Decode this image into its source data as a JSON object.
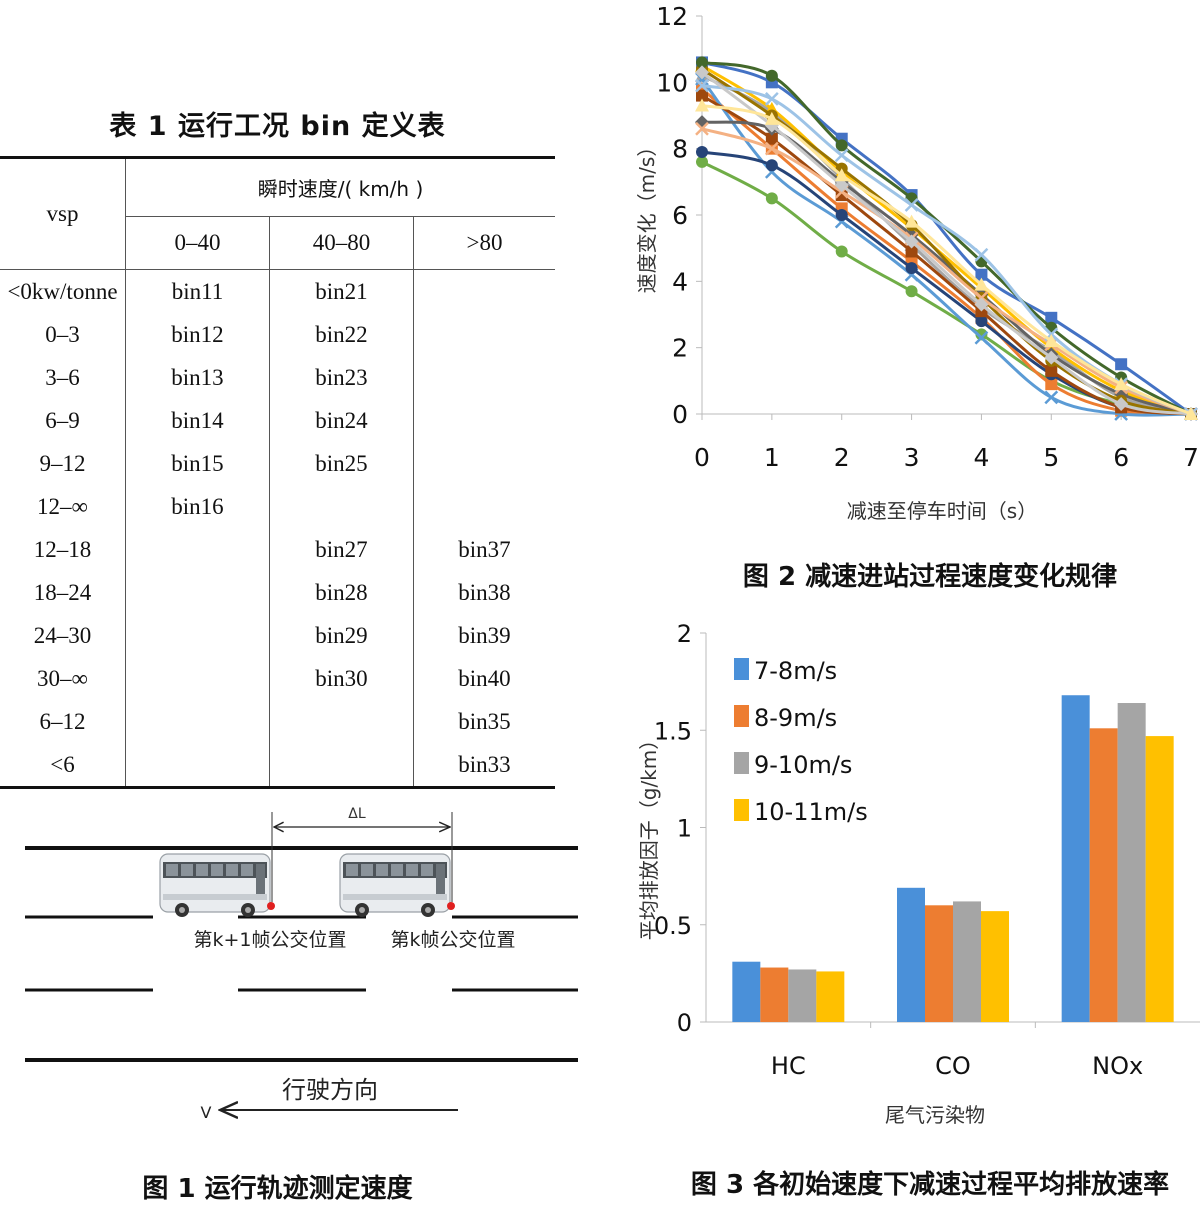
{
  "table1": {
    "title": "表 1  运行工况 bin 定义表",
    "row_header": "vsp",
    "speed_header": "瞬时速度/( km/h )",
    "speed_columns": [
      "0–40",
      "40–80",
      ">80"
    ],
    "rows": [
      {
        "vsp": "<0kw/tonne",
        "c1": "bin11",
        "c2": "bin21",
        "c3": ""
      },
      {
        "vsp": "0–3",
        "c1": "bin12",
        "c2": "bin22",
        "c3": ""
      },
      {
        "vsp": "3–6",
        "c1": "bin13",
        "c2": "bin23",
        "c3": ""
      },
      {
        "vsp": "6–9",
        "c1": "bin14",
        "c2": "bin24",
        "c3": ""
      },
      {
        "vsp": "9–12",
        "c1": "bin15",
        "c2": "bin25",
        "c3": ""
      },
      {
        "vsp": "12–∞",
        "c1": "bin16",
        "c2": "",
        "c3": ""
      },
      {
        "vsp": "12–18",
        "c1": "",
        "c2": "bin27",
        "c3": "bin37"
      },
      {
        "vsp": "18–24",
        "c1": "",
        "c2": "bin28",
        "c3": "bin38"
      },
      {
        "vsp": "24–30",
        "c1": "",
        "c2": "bin29",
        "c3": "bin39"
      },
      {
        "vsp": "30–∞",
        "c1": "",
        "c2": "bin30",
        "c3": "bin40"
      },
      {
        "vsp": "6–12",
        "c1": "",
        "c2": "",
        "c3": "bin35"
      },
      {
        "vsp": "<6",
        "c1": "",
        "c2": "",
        "c3": "bin33"
      }
    ]
  },
  "fig1": {
    "caption": "图 1  运行轨迹测定速度",
    "delta_label": "ΔL",
    "bus_labels": [
      "第k+1帧公交位置",
      "第k帧公交位置"
    ],
    "direction_label": "行驶方向",
    "v_label": "V"
  },
  "fig2": {
    "caption": "图 2  减速进站过程速度变化规律",
    "chart_data": {
      "type": "line",
      "xlabel": "减速至停车时间（s）",
      "ylabel": "速度变化（m/s）",
      "x": [
        0,
        1,
        2,
        3,
        4,
        5,
        6,
        7
      ],
      "xlim": [
        0,
        7
      ],
      "ylim": [
        0,
        12
      ],
      "yticks": [
        0,
        2,
        4,
        6,
        8,
        10,
        12
      ],
      "grid": false,
      "series": [
        {
          "color": "#4472c4",
          "marker": "square",
          "values": [
            10.6,
            10.0,
            8.3,
            6.6,
            4.2,
            2.9,
            1.5,
            0.0
          ]
        },
        {
          "color": "#70ad47",
          "marker": "circle",
          "values": [
            7.6,
            6.5,
            4.9,
            3.7,
            2.4,
            1.0,
            0.3,
            0.0
          ]
        },
        {
          "color": "#ed7d31",
          "marker": "square",
          "values": [
            9.8,
            8.0,
            6.2,
            4.6,
            2.9,
            0.9,
            0.1,
            0.0
          ]
        },
        {
          "color": "#a5a5a5",
          "marker": "triangle",
          "values": [
            10.2,
            9.1,
            7.1,
            5.1,
            3.2,
            1.9,
            0.5,
            0.0
          ]
        },
        {
          "color": "#ffc000",
          "marker": "triangle",
          "values": [
            10.5,
            9.2,
            7.3,
            5.6,
            3.8,
            2.0,
            0.7,
            0.0
          ]
        },
        {
          "color": "#5b9bd5",
          "marker": "x",
          "values": [
            10.1,
            7.3,
            5.8,
            4.2,
            2.3,
            0.5,
            0.0,
            0.0
          ]
        },
        {
          "color": "#264478",
          "marker": "circle",
          "values": [
            7.9,
            7.5,
            6.0,
            4.4,
            2.8,
            1.2,
            0.2,
            0.0
          ]
        },
        {
          "color": "#9e480e",
          "marker": "square",
          "values": [
            9.6,
            8.3,
            6.6,
            4.9,
            3.1,
            1.3,
            0.2,
            0.0
          ]
        },
        {
          "color": "#636363",
          "marker": "diamond",
          "values": [
            8.8,
            8.6,
            7.0,
            5.4,
            3.6,
            1.8,
            0.6,
            0.0
          ]
        },
        {
          "color": "#997300",
          "marker": "circle",
          "values": [
            10.4,
            9.0,
            7.4,
            5.7,
            3.5,
            1.6,
            0.4,
            0.0
          ]
        },
        {
          "color": "#43682b",
          "marker": "circle",
          "values": [
            10.6,
            10.2,
            8.1,
            6.5,
            4.6,
            2.6,
            1.1,
            0.0
          ]
        },
        {
          "color": "#f4b183",
          "marker": "x",
          "values": [
            8.6,
            8.0,
            6.7,
            5.3,
            3.5,
            2.1,
            0.8,
            0.0
          ]
        },
        {
          "color": "#9dc3e6",
          "marker": "x",
          "values": [
            9.9,
            9.5,
            7.8,
            6.3,
            4.8,
            2.4,
            0.9,
            0.0
          ]
        },
        {
          "color": "#c9c9c9",
          "marker": "diamond",
          "values": [
            10.3,
            8.7,
            6.9,
            5.2,
            3.3,
            1.7,
            0.3,
            0.0
          ]
        },
        {
          "color": "#ffe699",
          "marker": "triangle",
          "values": [
            9.3,
            8.9,
            7.2,
            5.8,
            3.9,
            2.2,
            0.9,
            0.0
          ]
        }
      ]
    }
  },
  "fig3": {
    "caption": "图 3  各初始速度下减速过程平均排放速率",
    "chart_data": {
      "type": "bar",
      "xlabel": "尾气污染物",
      "ylabel": "平均排放因子（g/km）",
      "categories": [
        "HC",
        "CO",
        "NOx"
      ],
      "ylim": [
        0,
        2
      ],
      "yticks": [
        "0",
        "0.5",
        "1",
        "1.5",
        "2"
      ],
      "legend_position": "top-left",
      "series": [
        {
          "name": "7-8m/s",
          "color": "#4a90d9",
          "values": [
            0.31,
            0.69,
            1.68
          ]
        },
        {
          "name": "8-9m/s",
          "color": "#ed7d31",
          "values": [
            0.28,
            0.6,
            1.51
          ]
        },
        {
          "name": "9-10m/s",
          "color": "#a5a5a5",
          "values": [
            0.27,
            0.62,
            1.64
          ]
        },
        {
          "name": "10-11m/s",
          "color": "#ffc000",
          "values": [
            0.26,
            0.57,
            1.47
          ]
        }
      ]
    }
  }
}
